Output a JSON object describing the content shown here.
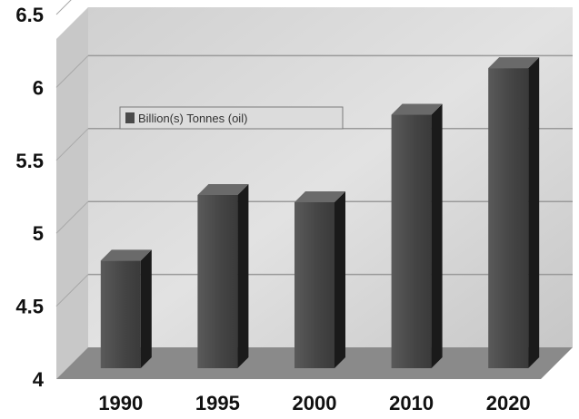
{
  "chart_data": {
    "type": "bar",
    "title": "",
    "xlabel": "",
    "ylabel": "",
    "categories": [
      "1990",
      "1995",
      "2000",
      "2010",
      "2020"
    ],
    "series": [
      {
        "name": "Billion(s) Tonnes (oil)",
        "values": [
          4.85,
          5.3,
          5.25,
          5.85,
          6.17
        ]
      }
    ],
    "ylim": [
      4,
      6.5
    ],
    "yticks": [
      "4",
      "4.5",
      "5",
      "5.5",
      "6",
      "6.5"
    ],
    "grid": true,
    "legend": "top-left",
    "colors": {
      "bar": "#4a4a4a",
      "bar_side": "#1a1a1a",
      "bar_top": "#6a6a6a",
      "plot_bg": "#d6d6d6",
      "floor": "#8a8a8a"
    }
  }
}
